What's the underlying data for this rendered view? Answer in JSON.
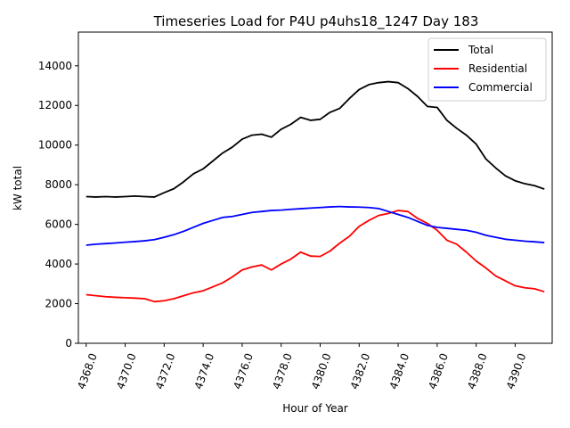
{
  "chart_data": {
    "type": "line",
    "title": "Timeseries Load for P4U p4uhs18_1247  Day 183",
    "xlabel": "Hour of Year",
    "ylabel": "kW total",
    "xlim": [
      4367.6,
      4391.9
    ],
    "ylim": [
      0,
      15700
    ],
    "xticks": [
      4368,
      4370,
      4372,
      4374,
      4376,
      4378,
      4380,
      4382,
      4384,
      4386,
      4388,
      4390
    ],
    "xtick_labels": [
      "4368.0",
      "4370.0",
      "4372.0",
      "4374.0",
      "4376.0",
      "4378.0",
      "4380.0",
      "4382.0",
      "4384.0",
      "4386.0",
      "4388.0",
      "4390.0"
    ],
    "yticks": [
      0,
      2000,
      4000,
      6000,
      8000,
      10000,
      12000,
      14000
    ],
    "ytick_labels": [
      "0",
      "2000",
      "4000",
      "6000",
      "8000",
      "10000",
      "12000",
      "14000"
    ],
    "legend_position": "top-right",
    "x": [
      4368.0,
      4368.5,
      4369.0,
      4369.5,
      4370.0,
      4370.5,
      4371.0,
      4371.5,
      4372.0,
      4372.5,
      4373.0,
      4373.5,
      4374.0,
      4374.5,
      4375.0,
      4375.5,
      4376.0,
      4376.5,
      4377.0,
      4377.5,
      4378.0,
      4378.5,
      4379.0,
      4379.5,
      4380.0,
      4380.5,
      4381.0,
      4381.5,
      4382.0,
      4382.5,
      4383.0,
      4383.5,
      4384.0,
      4384.5,
      4385.0,
      4385.5,
      4386.0,
      4386.5,
      4387.0,
      4387.5,
      4388.0,
      4388.5,
      4389.0,
      4389.5,
      4390.0,
      4390.5,
      4391.0,
      4391.5
    ],
    "series": [
      {
        "name": "Total",
        "color": "#000000",
        "values": [
          7400,
          7380,
          7400,
          7380,
          7400,
          7430,
          7400,
          7380,
          7600,
          7800,
          8150,
          8550,
          8800,
          9200,
          9600,
          9900,
          10300,
          10500,
          10550,
          10400,
          10800,
          11050,
          11400,
          11250,
          11300,
          11650,
          11850,
          12350,
          12800,
          13050,
          13150,
          13200,
          13150,
          12850,
          12450,
          11950,
          11900,
          11250,
          10850,
          10500,
          10050,
          9300,
          8850,
          8450,
          8200,
          8050,
          7950,
          7780
        ]
      },
      {
        "name": "Residential",
        "color": "#ff0000",
        "values": [
          2450,
          2400,
          2350,
          2320,
          2300,
          2280,
          2250,
          2100,
          2150,
          2250,
          2400,
          2550,
          2650,
          2850,
          3050,
          3350,
          3700,
          3850,
          3950,
          3700,
          4000,
          4250,
          4600,
          4400,
          4380,
          4650,
          5050,
          5400,
          5900,
          6200,
          6450,
          6550,
          6700,
          6650,
          6300,
          6050,
          5700,
          5200,
          5000,
          4600,
          4150,
          3800,
          3400,
          3150,
          2900,
          2800,
          2750,
          2600
        ]
      },
      {
        "name": "Commercial",
        "color": "#0000ff",
        "values": [
          4950,
          5000,
          5030,
          5060,
          5100,
          5130,
          5170,
          5230,
          5350,
          5480,
          5650,
          5850,
          6050,
          6200,
          6350,
          6400,
          6500,
          6600,
          6650,
          6700,
          6720,
          6760,
          6790,
          6820,
          6850,
          6880,
          6900,
          6880,
          6870,
          6850,
          6800,
          6650,
          6500,
          6350,
          6150,
          5950,
          5850,
          5800,
          5750,
          5700,
          5600,
          5450,
          5350,
          5250,
          5200,
          5150,
          5120,
          5080
        ]
      }
    ]
  }
}
